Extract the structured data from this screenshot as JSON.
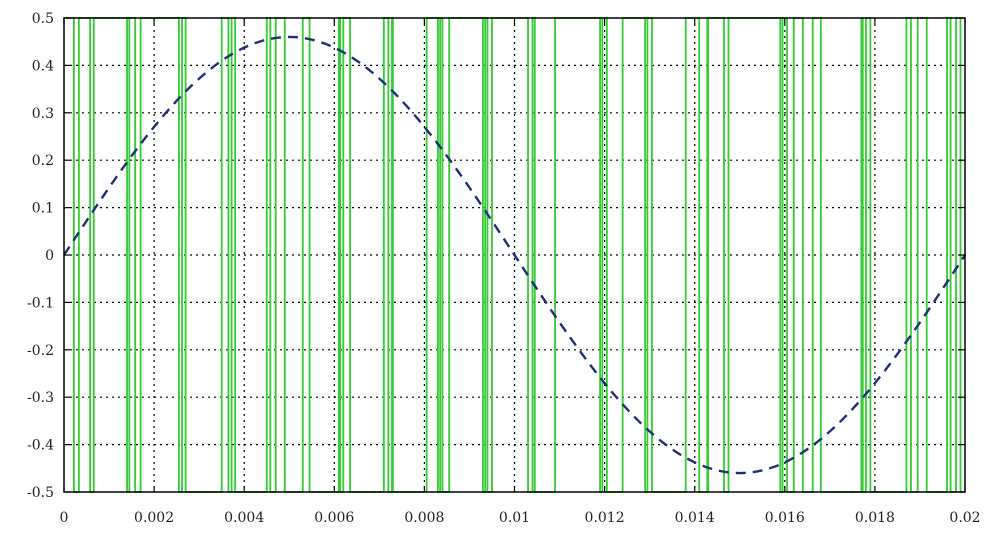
{
  "chart_data": {
    "type": "line",
    "title": "",
    "xlabel": "",
    "ylabel": "",
    "xlim": [
      0,
      0.02
    ],
    "ylim": [
      -0.5,
      0.5
    ],
    "grid": true,
    "legend": "none",
    "x_ticks": [
      "0",
      "0.002",
      "0.004",
      "0.006",
      "0.008",
      "0.01",
      "0.012",
      "0.014",
      "0.016",
      "0.018",
      "0.02"
    ],
    "y_ticks": [
      "0.5",
      "0.4",
      "0.3",
      "0.2",
      "0.1",
      "0",
      "-0.1",
      "-0.2",
      "-0.3",
      "-0.4",
      "-0.5"
    ],
    "series": [
      {
        "style": "step",
        "color": "#33cc33",
        "levels": [
          -0.5,
          0.5
        ],
        "initial_level": 0.5,
        "transitions_x": [
          0.00022,
          0.00033,
          0.00058,
          0.00066,
          0.0014,
          0.00145,
          0.00158,
          0.0017,
          0.00255,
          0.00262,
          0.0027,
          0.0035,
          0.00365,
          0.00372,
          0.0038,
          0.0045,
          0.00458,
          0.0047,
          0.0049,
          0.0053,
          0.00545,
          0.0061,
          0.00613,
          0.0062,
          0.00635,
          0.0071,
          0.0072,
          0.00728,
          0.0073,
          0.00805,
          0.0083,
          0.00835,
          0.0084,
          0.00855,
          0.0093,
          0.00935,
          0.0094,
          0.0095,
          0.0103,
          0.0104,
          0.01045,
          0.0109,
          0.0119,
          0.01195,
          0.01205,
          0.0124,
          0.0129,
          0.01295,
          0.01305,
          0.0143,
          0.0138,
          0.01428,
          0.0141,
          0.0143,
          0.01465,
          0.01475,
          0.0159,
          0.01595,
          0.01605,
          0.0162,
          0.0164,
          0.01662,
          0.0168,
          0.0177,
          0.01773,
          0.0178,
          0.0179,
          0.0187,
          0.0188,
          0.01895,
          0.01915,
          0.0196,
          0.01968,
          0.0198,
          0.0199
        ]
      },
      {
        "style": "dashed",
        "color": "#1f2f7a",
        "function": "sine",
        "amplitude": 0.46,
        "period": 0.02,
        "phase": 0
      }
    ]
  }
}
